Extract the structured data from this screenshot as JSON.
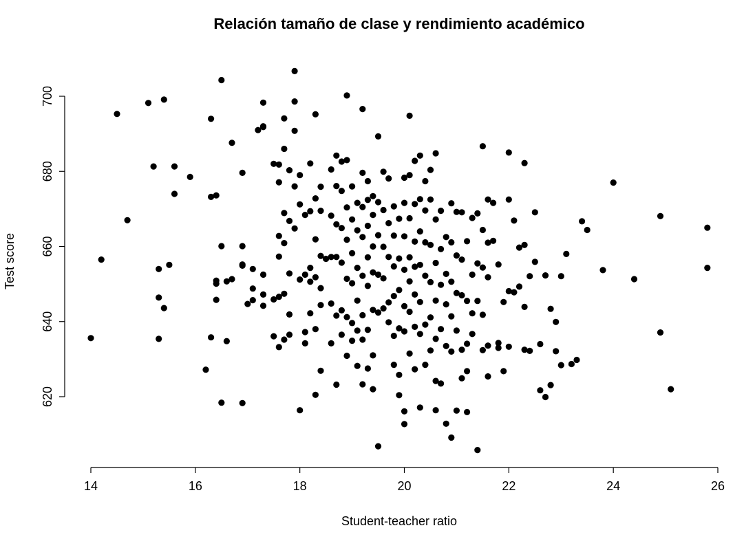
{
  "chart_data": {
    "type": "scatter",
    "title": "Relación tamaño de clase y rendimiento académico",
    "xlabel": "Student-teacher ratio",
    "ylabel": "Test score",
    "xlim": [
      14,
      26
    ],
    "ylim": [
      605,
      707
    ],
    "xticks": [
      14,
      16,
      18,
      20,
      22,
      24,
      26
    ],
    "yticks": [
      620,
      640,
      660,
      680,
      700
    ],
    "grid": false,
    "legend": "none",
    "point_color": "#000000",
    "points": [
      [
        14.0,
        635.6
      ],
      [
        14.2,
        656.5
      ],
      [
        14.5,
        695.3
      ],
      [
        14.7,
        667.0
      ],
      [
        15.1,
        698.2
      ],
      [
        15.2,
        681.3
      ],
      [
        15.3,
        654.0
      ],
      [
        15.3,
        646.4
      ],
      [
        15.3,
        635.4
      ],
      [
        15.4,
        699.1
      ],
      [
        15.4,
        643.6
      ],
      [
        15.5,
        655.1
      ],
      [
        15.6,
        681.3
      ],
      [
        15.6,
        674.0
      ],
      [
        15.9,
        678.5
      ],
      [
        16.2,
        627.2
      ],
      [
        16.3,
        694.0
      ],
      [
        16.3,
        673.2
      ],
      [
        16.3,
        635.8
      ],
      [
        16.4,
        673.6
      ],
      [
        16.4,
        650.9
      ],
      [
        16.4,
        650.1
      ],
      [
        16.4,
        645.8
      ],
      [
        16.5,
        704.3
      ],
      [
        16.5,
        660.1
      ],
      [
        16.5,
        618.4
      ],
      [
        16.6,
        650.7
      ],
      [
        16.6,
        634.8
      ],
      [
        16.7,
        687.6
      ],
      [
        16.7,
        651.3
      ],
      [
        16.9,
        679.6
      ],
      [
        16.9,
        660.1
      ],
      [
        16.9,
        655.2
      ],
      [
        16.9,
        654.9
      ],
      [
        17.0,
        644.7
      ],
      [
        16.9,
        618.3
      ],
      [
        17.1,
        654.0
      ],
      [
        17.1,
        648.8
      ],
      [
        17.1,
        645.7
      ],
      [
        17.2,
        691.0
      ],
      [
        17.3,
        692.0
      ],
      [
        17.3,
        698.3
      ],
      [
        17.3,
        691.8
      ],
      [
        17.3,
        652.5
      ],
      [
        17.3,
        647.2
      ],
      [
        17.3,
        644.2
      ],
      [
        17.5,
        682.0
      ],
      [
        17.5,
        645.9
      ],
      [
        17.5,
        636.1
      ],
      [
        17.6,
        681.8
      ],
      [
        17.6,
        677.1
      ],
      [
        17.6,
        662.8
      ],
      [
        17.6,
        657.3
      ],
      [
        17.6,
        646.6
      ],
      [
        17.6,
        633.2
      ],
      [
        17.7,
        694.1
      ],
      [
        17.7,
        686.0
      ],
      [
        17.7,
        668.9
      ],
      [
        17.7,
        660.9
      ],
      [
        17.7,
        647.4
      ],
      [
        17.7,
        635.2
      ],
      [
        17.8,
        680.3
      ],
      [
        17.8,
        666.8
      ],
      [
        17.8,
        652.8
      ],
      [
        17.8,
        641.9
      ],
      [
        17.8,
        636.5
      ],
      [
        17.9,
        706.7
      ],
      [
        17.9,
        698.6
      ],
      [
        17.9,
        690.8
      ],
      [
        17.9,
        676.0
      ],
      [
        17.9,
        664.8
      ],
      [
        18.0,
        679.0
      ],
      [
        18.0,
        671.2
      ],
      [
        18.0,
        651.2
      ],
      [
        18.0,
        616.4
      ],
      [
        18.1,
        668.4
      ],
      [
        18.1,
        652.5
      ],
      [
        18.1,
        637.2
      ],
      [
        18.1,
        634.2
      ],
      [
        18.2,
        682.1
      ],
      [
        18.2,
        669.4
      ],
      [
        18.2,
        654.3
      ],
      [
        18.2,
        650.6
      ],
      [
        18.2,
        642.2
      ],
      [
        18.3,
        695.2
      ],
      [
        18.3,
        672.8
      ],
      [
        18.3,
        661.9
      ],
      [
        18.3,
        651.8
      ],
      [
        18.3,
        638.0
      ],
      [
        18.3,
        620.5
      ],
      [
        18.4,
        675.9
      ],
      [
        18.4,
        669.5
      ],
      [
        18.4,
        657.5
      ],
      [
        18.4,
        648.9
      ],
      [
        18.4,
        644.4
      ],
      [
        18.4,
        626.9
      ],
      [
        18.5,
        656.7
      ],
      [
        18.6,
        680.5
      ],
      [
        18.6,
        668.2
      ],
      [
        18.6,
        657.2
      ],
      [
        18.6,
        644.8
      ],
      [
        18.6,
        634.2
      ],
      [
        18.7,
        684.2
      ],
      [
        18.7,
        676.1
      ],
      [
        18.7,
        665.9
      ],
      [
        18.7,
        657.2
      ],
      [
        18.7,
        641.6
      ],
      [
        18.7,
        623.2
      ],
      [
        18.8,
        682.6
      ],
      [
        18.8,
        674.8
      ],
      [
        18.8,
        664.9
      ],
      [
        18.8,
        655.7
      ],
      [
        18.8,
        643.0
      ],
      [
        18.8,
        636.5
      ],
      [
        18.9,
        700.2
      ],
      [
        18.9,
        683.0
      ],
      [
        18.9,
        670.4
      ],
      [
        18.9,
        661.8
      ],
      [
        18.9,
        651.4
      ],
      [
        18.9,
        641.2
      ],
      [
        18.9,
        630.9
      ],
      [
        19.0,
        676.0
      ],
      [
        19.0,
        667.2
      ],
      [
        19.0,
        658.2
      ],
      [
        19.0,
        650.2
      ],
      [
        19.0,
        639.6
      ],
      [
        19.0,
        634.9
      ],
      [
        19.1,
        671.6
      ],
      [
        19.1,
        664.3
      ],
      [
        19.1,
        654.3
      ],
      [
        19.1,
        645.6
      ],
      [
        19.1,
        637.6
      ],
      [
        19.1,
        628.2
      ],
      [
        19.2,
        696.6
      ],
      [
        19.2,
        679.6
      ],
      [
        19.2,
        670.5
      ],
      [
        19.2,
        662.5
      ],
      [
        19.2,
        652.2
      ],
      [
        19.2,
        641.7
      ],
      [
        19.2,
        635.2
      ],
      [
        19.2,
        623.3
      ],
      [
        19.3,
        677.4
      ],
      [
        19.3,
        672.4
      ],
      [
        19.3,
        665.5
      ],
      [
        19.3,
        657.1
      ],
      [
        19.3,
        649.5
      ],
      [
        19.3,
        637.8
      ],
      [
        19.3,
        627.5
      ],
      [
        19.4,
        673.4
      ],
      [
        19.4,
        668.4
      ],
      [
        19.4,
        660.0
      ],
      [
        19.4,
        653.1
      ],
      [
        19.4,
        643.1
      ],
      [
        19.4,
        631.0
      ],
      [
        19.4,
        622.0
      ],
      [
        19.5,
        689.3
      ],
      [
        19.5,
        671.8
      ],
      [
        19.5,
        663.0
      ],
      [
        19.5,
        652.5
      ],
      [
        19.5,
        642.4
      ],
      [
        19.5,
        606.8
      ],
      [
        19.6,
        679.9
      ],
      [
        19.6,
        669.7
      ],
      [
        19.6,
        659.9
      ],
      [
        19.6,
        651.5
      ],
      [
        19.6,
        643.5
      ],
      [
        19.7,
        678.1
      ],
      [
        19.7,
        666.2
      ],
      [
        19.7,
        657.2
      ],
      [
        19.7,
        645.1
      ],
      [
        19.7,
        639.8
      ],
      [
        19.8,
        670.7
      ],
      [
        19.8,
        662.9
      ],
      [
        19.8,
        654.7
      ],
      [
        19.8,
        646.8
      ],
      [
        19.8,
        636.2
      ],
      [
        19.8,
        628.5
      ],
      [
        19.9,
        667.4
      ],
      [
        19.9,
        656.8
      ],
      [
        19.9,
        648.4
      ],
      [
        19.9,
        638.2
      ],
      [
        19.9,
        625.8
      ],
      [
        19.9,
        620.4
      ],
      [
        20.0,
        678.3
      ],
      [
        20.0,
        671.6
      ],
      [
        20.0,
        662.7
      ],
      [
        20.0,
        653.8
      ],
      [
        20.0,
        644.1
      ],
      [
        20.0,
        637.4
      ],
      [
        20.0,
        616.1
      ],
      [
        20.0,
        612.7
      ],
      [
        20.1,
        694.8
      ],
      [
        20.1,
        679.0
      ],
      [
        20.1,
        667.5
      ],
      [
        20.1,
        657.1
      ],
      [
        20.1,
        650.7
      ],
      [
        20.1,
        642.6
      ],
      [
        20.1,
        631.5
      ],
      [
        20.2,
        682.8
      ],
      [
        20.2,
        671.3
      ],
      [
        20.2,
        661.3
      ],
      [
        20.2,
        654.6
      ],
      [
        20.2,
        647.2
      ],
      [
        20.2,
        638.6
      ],
      [
        20.2,
        627.3
      ],
      [
        20.3,
        684.2
      ],
      [
        20.3,
        672.6
      ],
      [
        20.3,
        664.0
      ],
      [
        20.3,
        655.1
      ],
      [
        20.3,
        645.2
      ],
      [
        20.3,
        636.7
      ],
      [
        20.3,
        617.1
      ],
      [
        20.4,
        677.4
      ],
      [
        20.4,
        669.6
      ],
      [
        20.4,
        661.1
      ],
      [
        20.4,
        652.2
      ],
      [
        20.4,
        639.2
      ],
      [
        20.4,
        628.5
      ],
      [
        20.5,
        680.4
      ],
      [
        20.5,
        672.5
      ],
      [
        20.5,
        660.4
      ],
      [
        20.5,
        650.5
      ],
      [
        20.5,
        641.1
      ],
      [
        20.5,
        632.3
      ],
      [
        20.6,
        684.8
      ],
      [
        20.6,
        667.2
      ],
      [
        20.6,
        655.6
      ],
      [
        20.6,
        645.6
      ],
      [
        20.6,
        635.4
      ],
      [
        20.6,
        624.2
      ],
      [
        20.6,
        616.4
      ],
      [
        20.7,
        669.5
      ],
      [
        20.7,
        659.3
      ],
      [
        20.7,
        649.8
      ],
      [
        20.7,
        638.0
      ],
      [
        20.7,
        623.5
      ],
      [
        20.8,
        662.5
      ],
      [
        20.8,
        652.7
      ],
      [
        20.8,
        644.6
      ],
      [
        20.8,
        633.5
      ],
      [
        20.8,
        612.8
      ],
      [
        20.9,
        671.5
      ],
      [
        20.9,
        661.1
      ],
      [
        20.9,
        650.6
      ],
      [
        20.9,
        641.4
      ],
      [
        20.9,
        632.0
      ],
      [
        20.9,
        609.1
      ],
      [
        21.0,
        669.2
      ],
      [
        21.0,
        657.6
      ],
      [
        21.0,
        647.6
      ],
      [
        21.0,
        637.6
      ],
      [
        21.0,
        616.3
      ],
      [
        21.1,
        669.1
      ],
      [
        21.1,
        656.5
      ],
      [
        21.1,
        647.0
      ],
      [
        21.1,
        632.5
      ],
      [
        21.1,
        624.9
      ],
      [
        21.2,
        661.4
      ],
      [
        21.2,
        645.5
      ],
      [
        21.2,
        634.1
      ],
      [
        21.2,
        626.8
      ],
      [
        21.2,
        615.9
      ],
      [
        21.3,
        667.6
      ],
      [
        21.3,
        652.5
      ],
      [
        21.3,
        642.2
      ],
      [
        21.3,
        636.7
      ],
      [
        21.4,
        668.8
      ],
      [
        21.4,
        655.5
      ],
      [
        21.4,
        645.5
      ],
      [
        21.4,
        605.8
      ],
      [
        21.5,
        686.7
      ],
      [
        21.5,
        664.4
      ],
      [
        21.5,
        654.4
      ],
      [
        21.5,
        641.8
      ],
      [
        21.5,
        632.4
      ],
      [
        21.6,
        672.5
      ],
      [
        21.6,
        661.0
      ],
      [
        21.6,
        651.8
      ],
      [
        21.6,
        633.6
      ],
      [
        21.6,
        625.4
      ],
      [
        21.7,
        671.6
      ],
      [
        21.7,
        661.5
      ],
      [
        21.8,
        655.2
      ],
      [
        21.8,
        634.3
      ],
      [
        21.8,
        633.0
      ],
      [
        21.9,
        645.2
      ],
      [
        21.9,
        626.8
      ],
      [
        22.0,
        685.0
      ],
      [
        22.0,
        672.5
      ],
      [
        22.0,
        648.1
      ],
      [
        22.0,
        633.3
      ],
      [
        22.1,
        666.9
      ],
      [
        22.1,
        647.8
      ],
      [
        22.2,
        659.7
      ],
      [
        22.2,
        649.3
      ],
      [
        22.3,
        682.2
      ],
      [
        22.3,
        660.4
      ],
      [
        22.3,
        643.9
      ],
      [
        22.3,
        632.5
      ],
      [
        22.4,
        652.1
      ],
      [
        22.4,
        632.2
      ],
      [
        22.5,
        669.1
      ],
      [
        22.5,
        655.9
      ],
      [
        22.6,
        634.0
      ],
      [
        22.6,
        621.7
      ],
      [
        22.7,
        652.3
      ],
      [
        22.7,
        619.9
      ],
      [
        22.8,
        643.4
      ],
      [
        22.8,
        623.1
      ],
      [
        22.9,
        639.9
      ],
      [
        22.9,
        632.1
      ],
      [
        23.0,
        652.1
      ],
      [
        23.0,
        628.4
      ],
      [
        23.1,
        658.0
      ],
      [
        23.2,
        628.7
      ],
      [
        23.3,
        629.8
      ],
      [
        23.4,
        666.7
      ],
      [
        23.5,
        664.4
      ],
      [
        23.8,
        653.7
      ],
      [
        24.0,
        677.0
      ],
      [
        24.4,
        651.3
      ],
      [
        24.9,
        668.1
      ],
      [
        24.9,
        637.1
      ],
      [
        25.1,
        622.0
      ],
      [
        25.8,
        665.0
      ],
      [
        25.8,
        654.3
      ]
    ]
  }
}
